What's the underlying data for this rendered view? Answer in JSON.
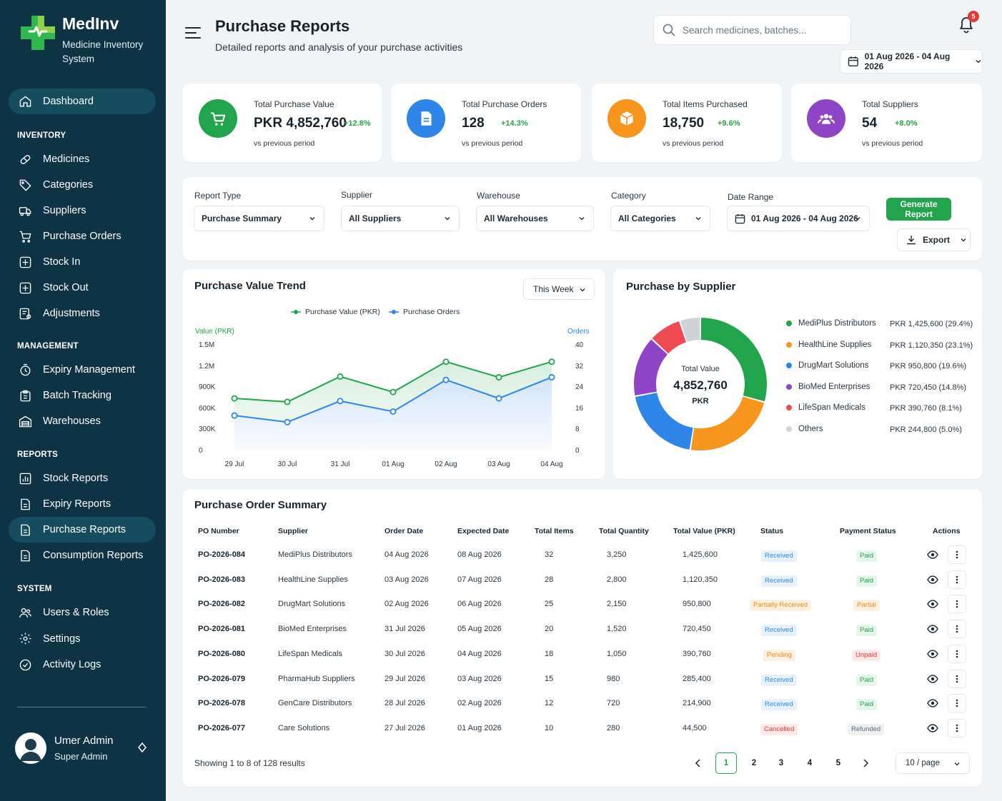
{
  "app": {
    "name": "MedInv",
    "subtitle": "Medicine Inventory System"
  },
  "sidebar": {
    "dashboard": "Dashboard",
    "sections": {
      "inventory": "INVENTORY",
      "management": "MANAGEMENT",
      "reports": "REPORTS",
      "system": "SYSTEM"
    },
    "inventory": [
      "Medicines",
      "Categories",
      "Suppliers",
      "Purchase Orders",
      "Stock In",
      "Stock Out",
      "Adjustments"
    ],
    "management": [
      "Expiry Management",
      "Batch Tracking",
      "Warehouses"
    ],
    "reports": [
      "Stock Reports",
      "Expiry Reports",
      "Purchase Reports",
      "Consumption Reports"
    ],
    "system": [
      "Users & Roles",
      "Settings",
      "Activity Logs"
    ],
    "active": "Purchase Reports"
  },
  "user": {
    "name": "Umer Admin",
    "role": "Super Admin"
  },
  "header": {
    "title": "Purchase Reports",
    "subtitle": "Detailed reports and analysis of your purchase activities",
    "search_placeholder": "Search medicines, batches...",
    "notifications": "5",
    "date_range": "01 Aug 2026 - 04 Aug 2026"
  },
  "kpis": [
    {
      "label": "Total Purchase Value",
      "value": "PKR 4,852,760",
      "delta": "+12.8%",
      "note": "vs previous period",
      "color": "#21a44b",
      "icon": "cart-icon"
    },
    {
      "label": "Total Purchase Orders",
      "value": "128",
      "delta": "+14.3%",
      "note": "vs previous period",
      "color": "#2e86e8",
      "icon": "document-icon"
    },
    {
      "label": "Total Items Purchased",
      "value": "18,750",
      "delta": "+9.6%",
      "note": "vs previous period",
      "color": "#f7951d",
      "icon": "box-icon"
    },
    {
      "label": "Total Suppliers",
      "value": "54",
      "delta": "+8.0%",
      "note": "vs previous period",
      "color": "#8e44c4",
      "icon": "users-icon"
    }
  ],
  "filters": {
    "report_type": {
      "label": "Report Type",
      "value": "Purchase Summary"
    },
    "supplier": {
      "label": "Supplier",
      "value": "All Suppliers"
    },
    "warehouse": {
      "label": "Warehouse",
      "value": "All Warehouses"
    },
    "category": {
      "label": "Category",
      "value": "All Categories"
    },
    "date_range": {
      "label": "Date Range",
      "value": "01 Aug 2026 - 04 Aug 2026"
    },
    "generate": "Generate Report",
    "export": "Export"
  },
  "trend": {
    "title": "Purchase Value Trend",
    "period": "This Week",
    "left_axis_label": "Value (PKR)",
    "right_axis_label": "Orders",
    "left_ticks": [
      "1.5M",
      "1.2M",
      "900K",
      "600K",
      "300K",
      "0"
    ],
    "right_ticks": [
      "40",
      "32",
      "24",
      "16",
      "8",
      "0"
    ]
  },
  "chart_data": [
    {
      "type": "line",
      "title": "Purchase Value Trend",
      "x": [
        "29 Jul",
        "30 Jul",
        "31 Jul",
        "01 Aug",
        "02 Aug",
        "03 Aug",
        "04 Aug"
      ],
      "series": [
        {
          "name": "Purchase Value (PKR)",
          "axis": "left",
          "color": "#21a44b",
          "values": [
            750000,
            700000,
            1060000,
            840000,
            1270000,
            1050000,
            1270000
          ]
        },
        {
          "name": "Purchase Orders",
          "axis": "right",
          "color": "#2e86e8",
          "values": [
            13.5,
            11,
            19,
            15,
            27,
            20,
            28
          ]
        }
      ],
      "ylabel": "Value (PKR)",
      "ylim": [
        0,
        1500000
      ],
      "y2label": "Orders",
      "y2lim": [
        0,
        40
      ],
      "grid": false,
      "legend": "top-center"
    },
    {
      "type": "pie",
      "title": "Purchase by Supplier",
      "center_label": "Total Value",
      "center_value": "4,852,760",
      "center_unit": "PKR",
      "slices": [
        {
          "name": "MediPlus Distributors",
          "value": 1425600,
          "label": "PKR 1,425,600 (29.4%)",
          "color": "#21a44b"
        },
        {
          "name": "HealthLine Supplies",
          "value": 1120350,
          "label": "PKR 1,120,350 (23.1%)",
          "color": "#f7951d"
        },
        {
          "name": "DrugMart Solutions",
          "value": 950800,
          "label": "PKR 950,800 (19.6%)",
          "color": "#2e86e8"
        },
        {
          "name": "BioMed Enterprises",
          "value": 720450,
          "label": "PKR 720,450 (14.8%)",
          "color": "#8e44c4"
        },
        {
          "name": "LifeSpan Medicals",
          "value": 390760,
          "label": "PKR 390,760 (8.1%)",
          "color": "#ef4a52"
        },
        {
          "name": "Others",
          "value": 244800,
          "label": "PKR 244,800 (5.0%)",
          "color": "#cfd3d6"
        }
      ],
      "legend": "right"
    }
  ],
  "table": {
    "title": "Purchase Order Summary",
    "columns": [
      "PO Number",
      "Supplier",
      "Order Date",
      "Expected Date",
      "Total Items",
      "Total Quantity",
      "Total Value (PKR)",
      "Status",
      "Payment Status",
      "Actions"
    ],
    "rows": [
      {
        "po": "PO-2026-084",
        "supplier": "MediPlus Distributors",
        "order": "04 Aug 2026",
        "expected": "08 Aug 2026",
        "items": "32",
        "qty": "3,250",
        "value": "1,425,600",
        "status": "Received",
        "payment": "Paid"
      },
      {
        "po": "PO-2026-083",
        "supplier": "HealthLine Supplies",
        "order": "03 Aug 2026",
        "expected": "07 Aug 2026",
        "items": "28",
        "qty": "2,800",
        "value": "1,120,350",
        "status": "Received",
        "payment": "Paid"
      },
      {
        "po": "PO-2026-082",
        "supplier": "DrugMart Solutions",
        "order": "02 Aug 2026",
        "expected": "06 Aug 2026",
        "items": "25",
        "qty": "2,150",
        "value": "950,800",
        "status": "Partially Received",
        "payment": "Partial"
      },
      {
        "po": "PO-2026-081",
        "supplier": "BioMed Enterprises",
        "order": "31 Jul 2026",
        "expected": "05 Aug 2026",
        "items": "20",
        "qty": "1,520",
        "value": "720,450",
        "status": "Received",
        "payment": "Paid"
      },
      {
        "po": "PO-2026-080",
        "supplier": "LifeSpan Medicals",
        "order": "30 Jul 2026",
        "expected": "04 Aug 2026",
        "items": "18",
        "qty": "1,050",
        "value": "390,760",
        "status": "Pending",
        "payment": "Unpaid"
      },
      {
        "po": "PO-2026-079",
        "supplier": "PharmaHub Suppliers",
        "order": "29 Jul 2026",
        "expected": "03 Aug 2026",
        "items": "15",
        "qty": "980",
        "value": "285,400",
        "status": "Received",
        "payment": "Paid"
      },
      {
        "po": "PO-2026-078",
        "supplier": "GenCare Distributors",
        "order": "28 Jul 2026",
        "expected": "02 Aug 2026",
        "items": "12",
        "qty": "720",
        "value": "214,900",
        "status": "Received",
        "payment": "Paid"
      },
      {
        "po": "PO-2026-077",
        "supplier": "Care Solutions",
        "order": "27 Jul 2026",
        "expected": "01 Aug 2026",
        "items": "10",
        "qty": "280",
        "value": "44,500",
        "status": "Cancelled",
        "payment": "Refunded"
      }
    ],
    "showing": "Showing 1 to 8 of 128 results",
    "pages": [
      "1",
      "2",
      "3",
      "4",
      "5"
    ],
    "per_page": "10 / page"
  }
}
